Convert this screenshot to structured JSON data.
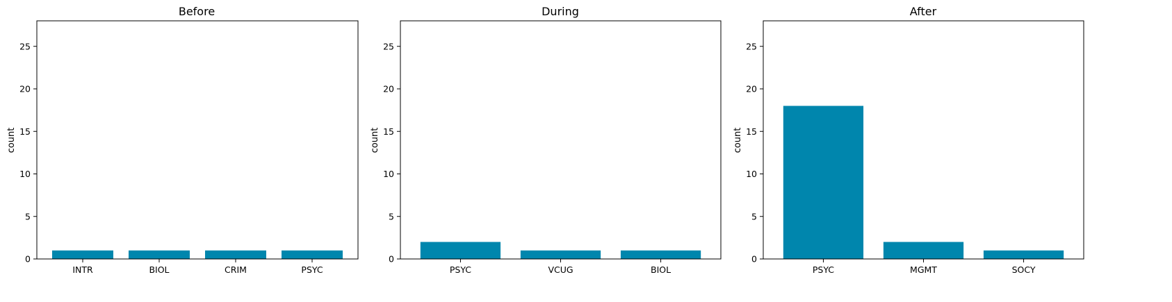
{
  "colors": {
    "bar": "#0086AD",
    "axis": "#000000",
    "background": "#ffffff"
  },
  "chart_data": [
    {
      "type": "bar",
      "title": "Before",
      "xlabel": "",
      "ylabel": "count",
      "categories": [
        "INTR",
        "BIOL",
        "CRIM",
        "PSYC"
      ],
      "values": [
        1,
        1,
        1,
        1
      ],
      "ylim": [
        0,
        28
      ],
      "yticks": [
        0,
        5,
        10,
        15,
        20,
        25
      ],
      "grid": false
    },
    {
      "type": "bar",
      "title": "During",
      "xlabel": "",
      "ylabel": "count",
      "categories": [
        "PSYC",
        "VCUG",
        "BIOL"
      ],
      "values": [
        2,
        1,
        1
      ],
      "ylim": [
        0,
        28
      ],
      "yticks": [
        0,
        5,
        10,
        15,
        20,
        25
      ],
      "grid": false
    },
    {
      "type": "bar",
      "title": "After",
      "xlabel": "",
      "ylabel": "count",
      "categories": [
        "PSYC",
        "MGMT",
        "SOCY"
      ],
      "values": [
        18,
        2,
        1
      ],
      "ylim": [
        0,
        28
      ],
      "yticks": [
        0,
        5,
        10,
        15,
        20,
        25
      ],
      "grid": false
    }
  ]
}
